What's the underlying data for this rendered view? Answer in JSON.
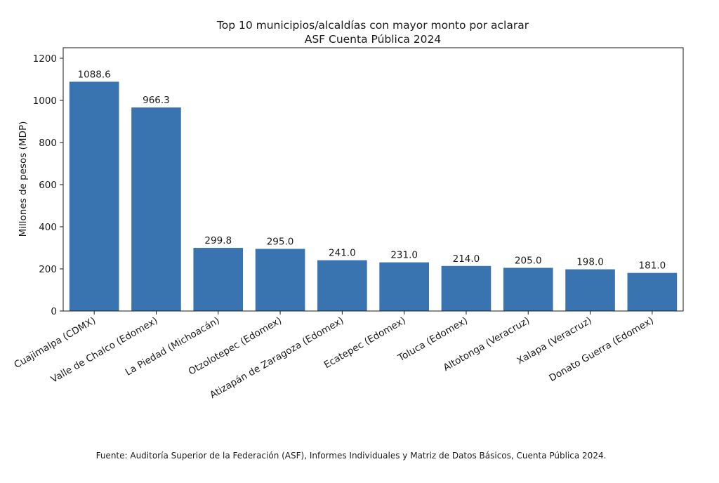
{
  "chart_data": {
    "type": "bar",
    "title": [
      "Top 10 municipios/alcaldías con mayor monto por aclarar",
      "ASF Cuenta Pública 2024"
    ],
    "xlabel": "",
    "ylabel": "Millones de pesos (MDP)",
    "ylim": [
      0,
      1250
    ],
    "yticks": [
      0,
      200,
      400,
      600,
      800,
      1000,
      1200
    ],
    "ytick_labels": [
      "0",
      "200",
      "400",
      "600",
      "800",
      "1000",
      "1200"
    ],
    "grid": false,
    "legend": "none",
    "bar_color": "#3a74b0",
    "categories": [
      "Cuajimalpa (CDMX)",
      "Valle de Chalco (Edomex)",
      "La Piedad (Michoacán)",
      "Otzolotepec (Edomex)",
      "Atizapán de Zaragoza (Edomex)",
      "Ecatepec (Edomex)",
      "Toluca (Edomex)",
      "Altotonga (Veracruz)",
      "Xalapa (Veracruz)",
      "Donato Guerra (Edomex)"
    ],
    "values": [
      1088.6,
      966.3,
      299.8,
      295.0,
      241.0,
      231.0,
      214.0,
      205.0,
      198.0,
      181.0
    ],
    "value_labels": [
      "1088.6",
      "966.3",
      "299.8",
      "295.0",
      "241.0",
      "231.0",
      "214.0",
      "205.0",
      "198.0",
      "181.0"
    ]
  },
  "footer": {
    "source": "Fuente: Auditoría Superior de la Federación (ASF), Informes Individuales y Matriz de Datos Básicos, Cuenta Pública 2024."
  }
}
